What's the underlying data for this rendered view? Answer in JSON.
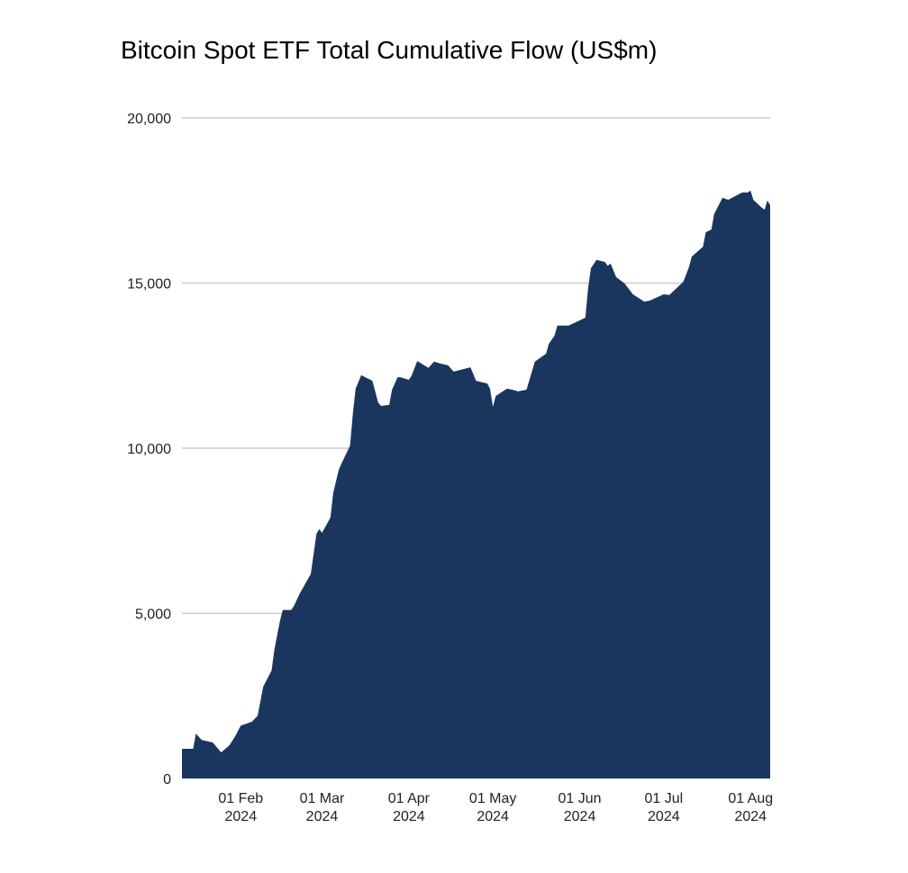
{
  "chart_data": {
    "type": "area",
    "title": "Bitcoin Spot ETF Total Cumulative Flow (US$m)",
    "xlabel": "",
    "ylabel": "",
    "ylim": [
      0,
      20000
    ],
    "xlim": [
      "2024-01-11",
      "2024-08-08"
    ],
    "grid": true,
    "legend": "none",
    "fill_color": "#1a365f",
    "yticks": [
      {
        "value": 0,
        "label": "0"
      },
      {
        "value": 5000,
        "label": "5,000"
      },
      {
        "value": 10000,
        "label": "10,000"
      },
      {
        "value": 15000,
        "label": "15,000"
      },
      {
        "value": 20000,
        "label": "20,000"
      }
    ],
    "xticks": [
      {
        "date": "2024-02-01",
        "label1": "01 Feb",
        "label2": "2024"
      },
      {
        "date": "2024-03-01",
        "label1": "01 Mar",
        "label2": "2024"
      },
      {
        "date": "2024-04-01",
        "label1": "01 Apr",
        "label2": "2024"
      },
      {
        "date": "2024-05-01",
        "label1": "01 May",
        "label2": "2024"
      },
      {
        "date": "2024-06-01",
        "label1": "01 Jun",
        "label2": "2024"
      },
      {
        "date": "2024-07-01",
        "label1": "01 Jul",
        "label2": "2024"
      },
      {
        "date": "2024-08-01",
        "label1": "01 Aug",
        "label2": "2024"
      }
    ],
    "series": [
      {
        "name": "Total Cumulative Flow",
        "points": [
          [
            "2024-01-11",
            900
          ],
          [
            "2024-01-15",
            900
          ],
          [
            "2024-01-16",
            1360
          ],
          [
            "2024-01-18",
            1170
          ],
          [
            "2024-01-22",
            1090
          ],
          [
            "2024-01-25",
            790
          ],
          [
            "2024-01-28",
            1010
          ],
          [
            "2024-01-30",
            1280
          ],
          [
            "2024-02-01",
            1600
          ],
          [
            "2024-02-05",
            1720
          ],
          [
            "2024-02-07",
            1900
          ],
          [
            "2024-02-09",
            2780
          ],
          [
            "2024-02-12",
            3270
          ],
          [
            "2024-02-13",
            3900
          ],
          [
            "2024-02-15",
            4770
          ],
          [
            "2024-02-16",
            5100
          ],
          [
            "2024-02-19",
            5100
          ],
          [
            "2024-02-20",
            5230
          ],
          [
            "2024-02-22",
            5590
          ],
          [
            "2024-02-26",
            6190
          ],
          [
            "2024-02-28",
            7410
          ],
          [
            "2024-02-29",
            7550
          ],
          [
            "2024-03-01",
            7440
          ],
          [
            "2024-03-04",
            7900
          ],
          [
            "2024-03-05",
            8640
          ],
          [
            "2024-03-07",
            9350
          ],
          [
            "2024-03-08",
            9540
          ],
          [
            "2024-03-11",
            10080
          ],
          [
            "2024-03-12",
            11040
          ],
          [
            "2024-03-13",
            11800
          ],
          [
            "2024-03-15",
            12210
          ],
          [
            "2024-03-19",
            12040
          ],
          [
            "2024-03-21",
            11390
          ],
          [
            "2024-03-22",
            11280
          ],
          [
            "2024-03-25",
            11310
          ],
          [
            "2024-03-26",
            11770
          ],
          [
            "2024-03-28",
            12150
          ],
          [
            "2024-03-29",
            12150
          ],
          [
            "2024-04-01",
            12070
          ],
          [
            "2024-04-02",
            12200
          ],
          [
            "2024-04-04",
            12640
          ],
          [
            "2024-04-08",
            12430
          ],
          [
            "2024-04-10",
            12620
          ],
          [
            "2024-04-12",
            12570
          ],
          [
            "2024-04-15",
            12510
          ],
          [
            "2024-04-17",
            12320
          ],
          [
            "2024-04-23",
            12450
          ],
          [
            "2024-04-25",
            12040
          ],
          [
            "2024-04-29",
            11960
          ],
          [
            "2024-04-30",
            11800
          ],
          [
            "2024-05-01",
            11250
          ],
          [
            "2024-05-02",
            11580
          ],
          [
            "2024-05-06",
            11800
          ],
          [
            "2024-05-08",
            11770
          ],
          [
            "2024-05-10",
            11720
          ],
          [
            "2024-05-13",
            11770
          ],
          [
            "2024-05-16",
            12620
          ],
          [
            "2024-05-20",
            12860
          ],
          [
            "2024-05-21",
            13160
          ],
          [
            "2024-05-23",
            13410
          ],
          [
            "2024-05-24",
            13710
          ],
          [
            "2024-05-28",
            13710
          ],
          [
            "2024-06-03",
            13950
          ],
          [
            "2024-06-04",
            14850
          ],
          [
            "2024-06-05",
            15450
          ],
          [
            "2024-06-07",
            15700
          ],
          [
            "2024-06-10",
            15640
          ],
          [
            "2024-06-11",
            15520
          ],
          [
            "2024-06-12",
            15590
          ],
          [
            "2024-06-14",
            15180
          ],
          [
            "2024-06-17",
            14990
          ],
          [
            "2024-06-20",
            14660
          ],
          [
            "2024-06-24",
            14440
          ],
          [
            "2024-06-26",
            14470
          ],
          [
            "2024-07-01",
            14660
          ],
          [
            "2024-07-03",
            14640
          ],
          [
            "2024-07-08",
            15040
          ],
          [
            "2024-07-10",
            15480
          ],
          [
            "2024-07-11",
            15800
          ],
          [
            "2024-07-15",
            16100
          ],
          [
            "2024-07-16",
            16540
          ],
          [
            "2024-07-18",
            16620
          ],
          [
            "2024-07-19",
            17090
          ],
          [
            "2024-07-22",
            17580
          ],
          [
            "2024-07-24",
            17520
          ],
          [
            "2024-07-29",
            17740
          ],
          [
            "2024-07-31",
            17740
          ],
          [
            "2024-08-01",
            17800
          ],
          [
            "2024-08-02",
            17520
          ],
          [
            "2024-08-05",
            17280
          ],
          [
            "2024-08-06",
            17220
          ],
          [
            "2024-08-07",
            17500
          ],
          [
            "2024-08-08",
            17360
          ]
        ]
      }
    ]
  }
}
